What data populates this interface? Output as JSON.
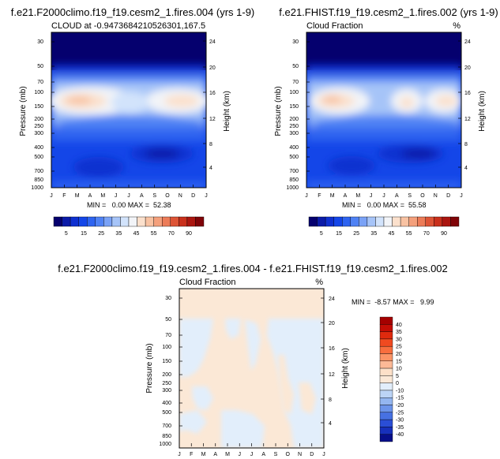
{
  "chart_data": [
    {
      "type": "heatmap",
      "title": "f.e21.F2000climo.f19_f19.cesm2_1.fires.004 (yrs 1-9)",
      "subtitle_left": "CLOUD at -0.9473684210526301,167.5",
      "subtitle_right": "",
      "xlabel": "",
      "ylabel": "Pressure (mb)",
      "y2label": "Height (km)",
      "x_ticks": [
        "J",
        "F",
        "M",
        "A",
        "M",
        "J",
        "J",
        "A",
        "S",
        "O",
        "N",
        "D",
        "J"
      ],
      "y_ticks": [
        "30",
        "50",
        "70",
        "100",
        "150",
        "200",
        "250",
        "300",
        "400",
        "500",
        "700",
        "850",
        "1000"
      ],
      "y2_ticks": [
        "24",
        "20",
        "16",
        "12",
        "8",
        "4"
      ],
      "ylim": [
        1000,
        20
      ],
      "stats": "MIN =   0.00 MAX =  52.38",
      "colorbar": {
        "orientation": "horizontal",
        "labels": [
          "5",
          "15",
          "25",
          "35",
          "45",
          "55",
          "70",
          "90"
        ],
        "colors": [
          "#05006e",
          "#0b1ba8",
          "#0f30d0",
          "#1446e8",
          "#2e64f0",
          "#4f82f4",
          "#7aa2f6",
          "#a6c4f8",
          "#d2e3fb",
          "#f2f4f8",
          "#fbe0cc",
          "#f8c2a2",
          "#f4a07c",
          "#ec7c58",
          "#dd5436",
          "#c9301c",
          "#ab1610",
          "#800408"
        ]
      },
      "notes": "Cloud fraction vs month and pressure; high cloud max ~52% near 150 mb in Feb-Apr and Nov-Dec"
    },
    {
      "type": "heatmap",
      "title": "f.e21.FHIST.f19_f19.cesm2_1.fires.002 (yrs 1-9)",
      "subtitle_left": "Cloud Fraction",
      "subtitle_right": "%",
      "xlabel": "",
      "ylabel": "Pressure (mb)",
      "y2label": "Height (km)",
      "x_ticks": [
        "J",
        "F",
        "M",
        "A",
        "M",
        "J",
        "J",
        "A",
        "S",
        "O",
        "N",
        "D",
        "J"
      ],
      "y_ticks": [
        "30",
        "50",
        "70",
        "100",
        "150",
        "200",
        "250",
        "300",
        "400",
        "500",
        "700",
        "850",
        "1000"
      ],
      "y2_ticks": [
        "24",
        "20",
        "16",
        "12",
        "8",
        "4"
      ],
      "ylim": [
        1000,
        20
      ],
      "stats": "MIN =   0.00 MAX =  55.58",
      "colorbar": {
        "orientation": "horizontal",
        "labels": [
          "5",
          "15",
          "25",
          "35",
          "45",
          "55",
          "70",
          "90"
        ],
        "colors": [
          "#05006e",
          "#0b1ba8",
          "#0f30d0",
          "#1446e8",
          "#2e64f0",
          "#4f82f4",
          "#7aa2f6",
          "#a6c4f8",
          "#d2e3fb",
          "#f2f4f8",
          "#fbe0cc",
          "#f8c2a2",
          "#f4a07c",
          "#ec7c58",
          "#dd5436",
          "#c9301c",
          "#ab1610",
          "#800408"
        ]
      }
    },
    {
      "type": "heatmap",
      "title": "f.e21.F2000climo.f19_f19.cesm2_1.fires.004 - f.e21.FHIST.f19_f19.cesm2_1.fires.002",
      "subtitle_left": "Cloud Fraction",
      "subtitle_right": "%",
      "xlabel": "",
      "ylabel": "Pressure (mb)",
      "y2label": "Height (km)",
      "x_ticks": [
        "J",
        "F",
        "M",
        "A",
        "M",
        "J",
        "J",
        "A",
        "S",
        "O",
        "N",
        "D",
        "J"
      ],
      "y_ticks": [
        "30",
        "50",
        "70",
        "100",
        "150",
        "200",
        "250",
        "300",
        "400",
        "500",
        "700",
        "850",
        "1000"
      ],
      "y2_ticks": [
        "24",
        "20",
        "16",
        "12",
        "8",
        "4"
      ],
      "ylim": [
        1000,
        20
      ],
      "stats": "MIN =  -8.57 MAX =   9.99",
      "colorbar": {
        "orientation": "vertical",
        "labels": [
          "40",
          "35",
          "30",
          "25",
          "20",
          "15",
          "10",
          "5",
          "0",
          "-10",
          "-15",
          "-20",
          "-25",
          "-30",
          "-35",
          "-40"
        ],
        "colors": [
          "#a50000",
          "#c40d05",
          "#df2a0e",
          "#f04a20",
          "#f86e3e",
          "#fb9466",
          "#fdb996",
          "#fde0c8",
          "#fbe8d6",
          "#e2eefb",
          "#bcd4f6",
          "#94b6f0",
          "#6c94ea",
          "#4771e2",
          "#2a4ed6",
          "#1730bb",
          "#070f8a"
        ]
      }
    }
  ]
}
